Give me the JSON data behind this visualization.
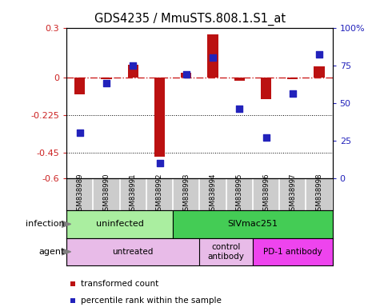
{
  "title": "GDS4235 / MmuSTS.808.1.S1_at",
  "samples": [
    "GSM838989",
    "GSM838990",
    "GSM838991",
    "GSM838992",
    "GSM838993",
    "GSM838994",
    "GSM838995",
    "GSM838996",
    "GSM838997",
    "GSM838998"
  ],
  "transformed_count": [
    -0.1,
    -0.01,
    0.08,
    -0.47,
    0.03,
    0.26,
    -0.02,
    -0.13,
    -0.01,
    0.07
  ],
  "percentile_rank": [
    30,
    63,
    75,
    10,
    69,
    80,
    46,
    27,
    56,
    82
  ],
  "ylim_left": [
    -0.6,
    0.3
  ],
  "ylim_right": [
    0,
    100
  ],
  "yticks_left": [
    -0.6,
    -0.45,
    -0.225,
    0.0,
    0.3
  ],
  "ytick_labels_left": [
    "-0.6",
    "-0.45",
    "-0.225",
    "0",
    "0.3"
  ],
  "yticks_right": [
    0,
    25,
    50,
    75,
    100
  ],
  "ytick_labels_right": [
    "0",
    "25",
    "50",
    "75",
    "100%"
  ],
  "hlines": [
    -0.225,
    -0.45
  ],
  "bar_color": "#bb1111",
  "scatter_color": "#2222bb",
  "zero_line_color": "#cc2222",
  "infection_groups": [
    {
      "label": "uninfected",
      "start": 0,
      "end": 4,
      "color": "#aaeea0"
    },
    {
      "label": "SIVmac251",
      "start": 4,
      "end": 10,
      "color": "#44cc55"
    }
  ],
  "agent_groups": [
    {
      "label": "untreated",
      "start": 0,
      "end": 5,
      "color": "#e8bbe8"
    },
    {
      "label": "control\nantibody",
      "start": 5,
      "end": 7,
      "color": "#e8bbe8"
    },
    {
      "label": "PD-1 antibody",
      "start": 7,
      "end": 10,
      "color": "#ee44ee"
    }
  ],
  "legend_items": [
    {
      "label": "transformed count",
      "color": "#bb1111"
    },
    {
      "label": "percentile rank within the sample",
      "color": "#2222bb"
    }
  ],
  "infection_label": "infection",
  "agent_label": "agent",
  "bar_width": 0.4,
  "scatter_size": 28,
  "background_color": "#ffffff",
  "title_fontsize": 10.5,
  "tick_fontsize": 8,
  "label_fontsize": 8,
  "sample_bg": "#cccccc"
}
